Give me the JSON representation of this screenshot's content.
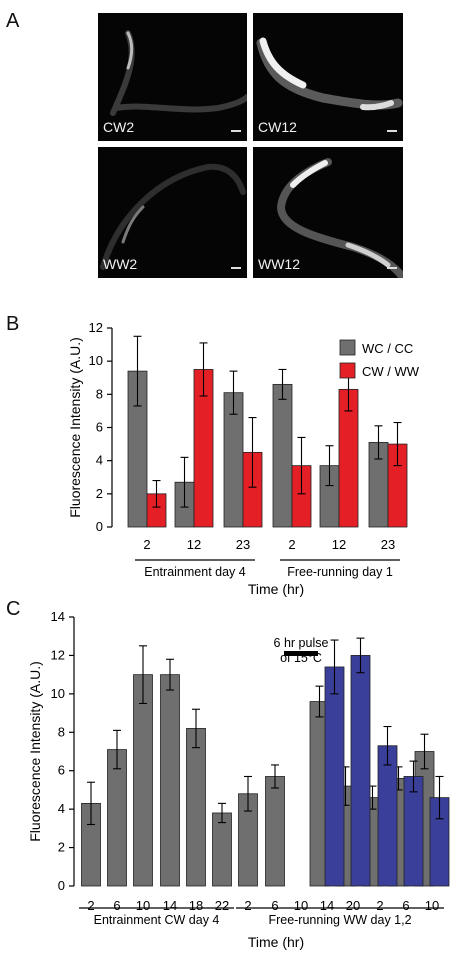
{
  "panels": {
    "A": {
      "letter": "A",
      "images": [
        {
          "label": "CW2"
        },
        {
          "label": "CW12"
        },
        {
          "label": "WW2"
        },
        {
          "label": "WW12"
        }
      ]
    },
    "B": {
      "letter": "B"
    },
    "C": {
      "letter": "C"
    }
  },
  "colors": {
    "gray": "#6f6f6f",
    "red": "#e41f26",
    "blue": "#3a3f9a"
  },
  "chart_data": [
    {
      "type": "bar",
      "panel": "B",
      "ylabel": "Fluorescence Intensity (A.U.)",
      "xlabel": "Time (hr)",
      "ylim": [
        0,
        12
      ],
      "yticks": [
        0,
        2,
        4,
        6,
        8,
        10,
        12
      ],
      "categories": [
        "2",
        "12",
        "23",
        "2",
        "12",
        "23"
      ],
      "groups": [
        {
          "label": "Entrainment day 4",
          "range": [
            0,
            2
          ]
        },
        {
          "label": "Free-running day 1",
          "range": [
            3,
            5
          ]
        }
      ],
      "legend": {
        "placement": "top-right"
      },
      "series": [
        {
          "name": "WC / CC",
          "color": "#6f6f6f",
          "values": [
            9.4,
            2.7,
            8.1,
            8.6,
            3.7,
            5.1
          ],
          "errors": [
            2.1,
            1.5,
            1.3,
            0.9,
            1.2,
            1.0
          ]
        },
        {
          "name": "CW / WW",
          "color": "#e41f26",
          "values": [
            2.0,
            9.5,
            4.5,
            3.7,
            8.3,
            5.0
          ],
          "errors": [
            0.8,
            1.6,
            2.1,
            1.7,
            1.3,
            1.3
          ]
        }
      ]
    },
    {
      "type": "bar",
      "panel": "C",
      "ylabel": "Fluorescence Intensity (A.U.)",
      "xlabel": "Time (hr)",
      "ylim": [
        0,
        14
      ],
      "yticks": [
        0,
        2,
        4,
        6,
        8,
        10,
        12,
        14
      ],
      "categories": [
        "2",
        "6",
        "10",
        "14",
        "18",
        "22",
        "2",
        "6",
        "10",
        "14",
        "20",
        "2",
        "6",
        "10"
      ],
      "groups": [
        {
          "label": "Entrainment CW day 4",
          "range": [
            0,
            5
          ]
        },
        {
          "label": "Free-running WW day 1,2",
          "range": [
            6,
            13
          ]
        }
      ],
      "annotation": {
        "lines": [
          "6 hr pulse",
          "of 15°C"
        ]
      },
      "series": [
        {
          "name": "",
          "color": "#6f6f6f",
          "values": [
            4.3,
            7.1,
            11.0,
            11.0,
            8.2,
            3.8,
            4.8,
            5.7,
            null,
            9.6,
            5.2,
            4.6,
            5.6,
            7.0
          ],
          "errors": [
            1.1,
            1.0,
            1.5,
            0.8,
            1.0,
            0.5,
            0.9,
            0.6,
            null,
            0.8,
            1.0,
            0.6,
            0.6,
            0.9
          ]
        },
        {
          "name": "",
          "color": "#3a3f9a",
          "values": [
            null,
            null,
            null,
            null,
            null,
            null,
            null,
            null,
            null,
            11.4,
            12.0,
            7.3,
            5.7,
            4.6
          ],
          "errors": [
            null,
            null,
            null,
            null,
            null,
            null,
            null,
            null,
            null,
            1.4,
            0.9,
            1.0,
            0.8,
            1.1
          ]
        }
      ]
    }
  ]
}
